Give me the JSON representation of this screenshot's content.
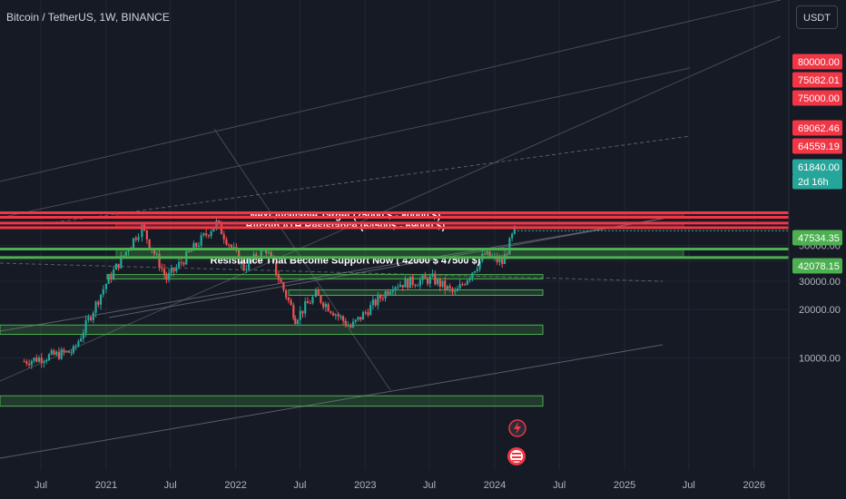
{
  "header": {
    "symbol_title": "Bitcoin / TetherUS, 1W, BINANCE",
    "currency_button": "USDT"
  },
  "colors": {
    "background": "#161a25",
    "bull": "#26a69a",
    "bear": "#ef5350",
    "resistance": "#f23645",
    "support": "#4caf50",
    "axis_text": "#b2b5be"
  },
  "chart_data": {
    "type": "candlestick",
    "scale": "log",
    "x_ticks": [
      "Jul",
      "2021",
      "Jul",
      "2022",
      "Jul",
      "2023",
      "Jul",
      "2024",
      "Jul",
      "2025",
      "Jul",
      "2026"
    ],
    "y_ticks": [
      "10000.00",
      "20000.00",
      "30000.00",
      "40000.00",
      "50000.00"
    ],
    "x_range": [
      "2020-05",
      "2026-06"
    ],
    "price_labels": [
      {
        "text": "80000.00",
        "kind": "resistance"
      },
      {
        "text": "75082.01",
        "kind": "resistance"
      },
      {
        "text": "75000.00",
        "kind": "resistance"
      },
      {
        "text": "69062.46",
        "kind": "resistance"
      },
      {
        "text": "64559.19",
        "kind": "resistance"
      },
      {
        "text": "61840.00",
        "kind": "last"
      },
      {
        "text": "2d 16h",
        "kind": "countdown"
      },
      {
        "text": "47534.35",
        "kind": "support"
      },
      {
        "text": "42078.15",
        "kind": "support"
      }
    ],
    "zones": [
      {
        "label": "Next Available Target (75000 $ - 80000 $)",
        "low": 75000,
        "high": 80000,
        "kind": "resistance"
      },
      {
        "label": "Bitcoin ATH Resistance (64500$  -  69000 $)",
        "low": 64500,
        "high": 69000,
        "kind": "resistance"
      },
      {
        "label": "Resistance That Become Support Now ( 42000 $   47500 $)",
        "low": 42000,
        "high": 47500,
        "kind": "support"
      }
    ],
    "support_boxes": [
      {
        "low": 31000,
        "high": 33000
      },
      {
        "low": 24500,
        "high": 26500
      },
      {
        "low": 14000,
        "high": 16000
      },
      {
        "low": 5000,
        "high": 5800
      }
    ],
    "key_prices": [
      {
        "date": "2020-05-15",
        "price": 9500
      },
      {
        "date": "2020-10-01",
        "price": 11000
      },
      {
        "date": "2021-01-01",
        "price": 29000
      },
      {
        "date": "2021-04-12",
        "price": 64800
      },
      {
        "date": "2021-06-20",
        "price": 31000
      },
      {
        "date": "2021-11-08",
        "price": 69000
      },
      {
        "date": "2022-01-24",
        "price": 36500
      },
      {
        "date": "2022-03-28",
        "price": 47500
      },
      {
        "date": "2022-06-18",
        "price": 17600
      },
      {
        "date": "2022-08-15",
        "price": 24500
      },
      {
        "date": "2022-11-21",
        "price": 15500
      },
      {
        "date": "2023-03-20",
        "price": 28500
      },
      {
        "date": "2023-07-10",
        "price": 31000
      },
      {
        "date": "2023-09-11",
        "price": 25000
      },
      {
        "date": "2023-12-04",
        "price": 44000
      },
      {
        "date": "2024-01-22",
        "price": 39000
      },
      {
        "date": "2024-02-26",
        "price": 62000
      }
    ]
  }
}
